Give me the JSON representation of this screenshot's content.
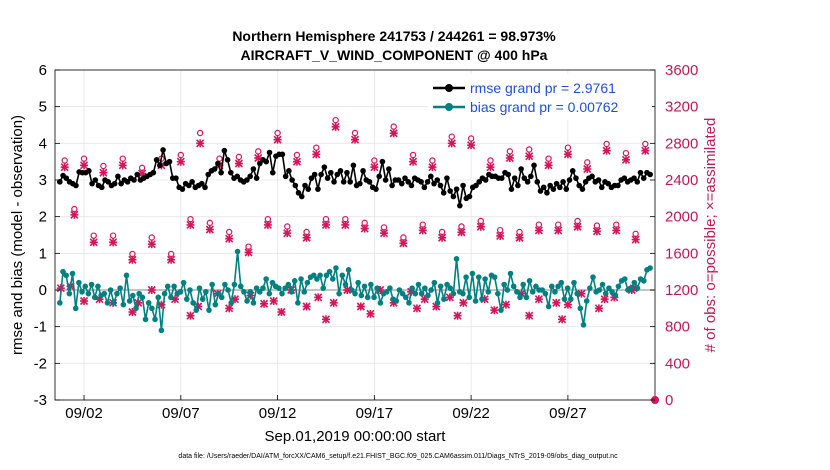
{
  "chart_data": {
    "type": "line",
    "title_line1": "Northern Hemisphere 241753 / 244261 = 98.973%",
    "title_line2": "AIRCRAFT_V_WIND_COMPONENT @ 400 hPa",
    "xlabel": "Sep.01,2019 00:00:00 start",
    "ylabel_left": "rmse and bias (model - observation)",
    "ylabel_right": "# of obs: o=possible; ×=assimilated",
    "xlim": [
      0,
      31
    ],
    "ylim_left": [
      -3,
      6
    ],
    "ylim_right": [
      0,
      3600
    ],
    "x_tick_values": [
      1.5,
      6.5,
      11.5,
      16.5,
      21.5,
      26.5
    ],
    "x_tick_labels": [
      "09/02",
      "09/07",
      "09/12",
      "09/17",
      "09/22",
      "09/27"
    ],
    "y_left_ticks": [
      "-3",
      "-2",
      "-1",
      "0",
      "1",
      "2",
      "3",
      "4",
      "5",
      "6"
    ],
    "y_right_ticks": [
      "0",
      "400",
      "800",
      "1200",
      "1600",
      "2000",
      "2400",
      "2800",
      "3200",
      "3600"
    ],
    "legend": [
      {
        "name": "rmse grand pr = 2.9761",
        "color": "#000000"
      },
      {
        "name": "bias grand pr = 0.00762",
        "color": "#008080"
      }
    ],
    "footnote": "data file: /Users/raeder/DAI/ATM_forcXX/CAM6_setup/f.e21.FHIST_BGC.f09_025.CAM6assim.011/Diags_NTrS_2019-09/obs_diag_output.nc",
    "series": [
      {
        "name": "rmse",
        "color": "#000000",
        "values": [
          2.95,
          3.12,
          3.05,
          2.95,
          2.9,
          2.85,
          3.22,
          3.2,
          3.2,
          3.25,
          2.9,
          3.0,
          2.85,
          2.8,
          3.0,
          2.95,
          2.85,
          2.9,
          3.1,
          2.9,
          3.0,
          2.95,
          3.05,
          3.0,
          3.15,
          3.0,
          3.05,
          3.1,
          3.15,
          3.2,
          3.55,
          3.4,
          3.82,
          3.45,
          3.5,
          3.05,
          3.05,
          2.8,
          2.75,
          2.9,
          2.85,
          2.95,
          2.8,
          2.85,
          2.9,
          2.8,
          3.15,
          3.25,
          3.3,
          3.45,
          3.2,
          3.8,
          3.55,
          3.2,
          3.05,
          3.1,
          3.0,
          2.95,
          3.0,
          3.1,
          3.3,
          3.05,
          3.45,
          3.55,
          3.5,
          3.75,
          3.2,
          3.65,
          3.7,
          3.7,
          3.1,
          3.25,
          3.0,
          2.85,
          2.65,
          2.55,
          2.85,
          2.75,
          3.05,
          3.15,
          2.75,
          3.15,
          3.35,
          3.05,
          3.2,
          2.95,
          3.15,
          3.25,
          2.95,
          3.2,
          2.95,
          3.4,
          2.85,
          2.9,
          3.25,
          3.0,
          2.95,
          2.8,
          2.75,
          3.1,
          3.5,
          3.0,
          3.3,
          2.85,
          3.0,
          3.0,
          2.9,
          3.05,
          2.95,
          2.85,
          3.05,
          3.0,
          2.95,
          2.8,
          2.95,
          3.1,
          2.9,
          3.0,
          2.85,
          2.65,
          3.05,
          2.7,
          2.55,
          2.75,
          2.3,
          2.85,
          2.5,
          2.55,
          2.8,
          2.85,
          2.95,
          3.05,
          3.0,
          3.15,
          3.1,
          3.1,
          3.05,
          3.05,
          3.2,
          3.15,
          2.75,
          3.05,
          2.85,
          3.3,
          3.05,
          2.95,
          3.1,
          3.4,
          2.95,
          2.7,
          2.8,
          2.65,
          2.85,
          2.75,
          2.9,
          2.8,
          2.95,
          2.75,
          3.0,
          3.25,
          3.05,
          2.85,
          2.75,
          2.95,
          3.05,
          3.1,
          2.95,
          3.0,
          2.8,
          2.95,
          2.9,
          2.8,
          2.85,
          2.85,
          3.0,
          3.05,
          2.95,
          3.0,
          3.05,
          2.95,
          3.2,
          3.05,
          3.2,
          3.15
        ]
      },
      {
        "name": "bias",
        "color": "#008080",
        "values": [
          -0.35,
          0.5,
          0.4,
          -0.1,
          0.45,
          -0.5,
          0.2,
          -0.05,
          0.1,
          -0.1,
          0.15,
          -0.2,
          0.1,
          -0.15,
          -0.1,
          -0.35,
          0.0,
          -0.35,
          -0.1,
          0.05,
          -0.4,
          0.4,
          -0.3,
          -0.15,
          -0.5,
          -0.1,
          -0.2,
          -0.8,
          -0.35,
          -0.5,
          -0.8,
          -0.2,
          -1.1,
          -0.1,
          0.1,
          -0.2,
          0.1,
          -0.1,
          -0.05,
          0.2,
          -0.25,
          0.0,
          -0.35,
          -0.55,
          0.05,
          -0.25,
          -0.05,
          -0.55,
          0.15,
          -0.4,
          -0.1,
          -0.2,
          0.15,
          0.0,
          -0.35,
          0.15,
          1.05,
          0.1,
          -0.05,
          -0.3,
          -0.05,
          -0.35,
          0.05,
          -0.05,
          0.05,
          0.3,
          -0.1,
          0.2,
          0.1,
          0.05,
          -0.1,
          0.05,
          0.15,
          -0.05,
          0.25,
          -0.35,
          0.3,
          -0.05,
          0.2,
          0.35,
          0.4,
          0.3,
          0.4,
          0.05,
          0.4,
          0.5,
          0.3,
          0.6,
          -0.1,
          0.4,
          0.15,
          0.55,
          0.0,
          -0.1,
          0.2,
          -0.15,
          0.1,
          -0.2,
          0.15,
          -0.2,
          0.05,
          -0.35,
          -0.1,
          -0.05,
          0.05,
          -0.25,
          -0.3,
          0.0,
          -0.1,
          -0.2,
          -0.35,
          0.05,
          -0.1,
          0.15,
          -0.1,
          0.05,
          -0.15,
          0.0,
          0.2,
          -0.35,
          0.1,
          -0.25,
          0.15,
          0.05,
          -0.1,
          0.85,
          -0.05,
          -0.1,
          0.35,
          -0.2,
          0.45,
          -0.3,
          0.35,
          -0.25,
          0.3,
          -0.05,
          0.4,
          0.35,
          -0.1,
          -0.55,
          0.15,
          0.0,
          0.45,
          0.1,
          -0.05,
          -0.2,
          0.15,
          -0.2,
          0.25,
          -0.05,
          0.1,
          0.0,
          0.0,
          -0.1,
          -0.45,
          0.1,
          -0.05,
          0.1,
          0.2,
          -0.25,
          0.05,
          -0.25,
          0.2,
          -0.1,
          -0.5,
          -0.95,
          -0.3,
          0.05,
          0.35,
          -0.05,
          0.0,
          0.15,
          -0.1,
          0.05,
          -0.05,
          -0.15,
          0.1,
          0.25,
          0.3,
          0.0,
          0.05,
          0.2,
          0.05,
          0.3,
          0.25,
          0.55,
          0.6
        ]
      },
      {
        "name": "obs_possible",
        "color": "#d6145a",
        "axis": "right",
        "x": [
          0.5,
          1.0,
          1.5,
          2.0,
          2.5,
          3.0,
          3.5,
          4.0,
          4.5,
          5.0,
          5.5,
          6.0,
          6.5,
          7.0,
          7.5,
          8.0,
          8.5,
          9.0,
          9.5,
          10.0,
          10.5,
          11.0,
          11.5,
          12.0,
          12.5,
          13.0,
          13.5,
          14.0,
          14.5,
          15.0,
          15.5,
          16.0,
          16.5,
          17.0,
          17.5,
          18.0,
          18.5,
          19.0,
          19.5,
          20.0,
          20.5,
          21.0,
          21.5,
          22.0,
          22.5,
          23.0,
          23.5,
          24.0,
          24.5,
          25.0,
          25.5,
          26.0,
          26.5,
          27.0,
          27.5,
          28.0,
          28.5,
          29.0,
          29.5,
          30.0,
          30.5
        ],
        "values": [
          2580,
          2050,
          2600,
          1760,
          2520,
          1760,
          2600,
          1560,
          2500,
          1740,
          2600,
          1560,
          2640,
          1940,
          2880,
          1900,
          2600,
          1800,
          2620,
          1640,
          2680,
          1940,
          2880,
          1860,
          2640,
          1800,
          2720,
          1940,
          3020,
          1940,
          2880,
          1900,
          2580,
          1850,
          2950,
          1740,
          2640,
          1880,
          2580,
          1800,
          2840,
          1860,
          2820,
          1920,
          2580,
          1820,
          2680,
          1800,
          2700,
          1880,
          2600,
          1880,
          2720,
          1920,
          2560,
          1870,
          2760,
          1880,
          2660,
          1780,
          2760
        ]
      },
      {
        "name": "obs_assimilated",
        "color": "#d6145a",
        "axis": "right",
        "x": [
          0.5,
          1.0,
          1.5,
          2.0,
          2.5,
          3.0,
          3.5,
          4.0,
          4.5,
          5.0,
          5.5,
          6.0,
          6.5,
          7.0,
          7.5,
          8.0,
          8.5,
          9.0,
          9.5,
          10.0,
          10.5,
          11.0,
          11.5,
          12.0,
          12.5,
          13.0,
          13.5,
          14.0,
          14.5,
          15.0,
          15.5,
          16.0,
          16.5,
          17.0,
          17.5,
          18.0,
          18.5,
          19.0,
          19.5,
          20.0,
          20.5,
          21.0,
          21.5,
          22.0,
          22.5,
          23.0,
          23.5,
          24.0,
          24.5,
          25.0,
          25.5,
          26.0,
          26.5,
          27.0,
          27.5,
          28.0,
          28.5,
          29.0,
          29.5,
          30.0,
          30.5
        ],
        "values": [
          2540,
          2020,
          2560,
          1720,
          2480,
          1720,
          2560,
          1530,
          2470,
          1700,
          2560,
          1530,
          2600,
          1910,
          2800,
          1860,
          2560,
          1760,
          2580,
          1610,
          2640,
          1910,
          2840,
          1820,
          2600,
          1770,
          2680,
          1910,
          2980,
          1910,
          2840,
          1870,
          2540,
          1820,
          2910,
          1710,
          2600,
          1850,
          2540,
          1770,
          2800,
          1830,
          2780,
          1890,
          2540,
          1790,
          2640,
          1770,
          2660,
          1850,
          2560,
          1850,
          2680,
          1890,
          2520,
          1840,
          2720,
          1850,
          2620,
          1750,
          2720
        ]
      },
      {
        "name": "obs_low",
        "color": "#d6145a",
        "axis": "right",
        "x": [
          0.3,
          1.5,
          2.3,
          3.0,
          4.3,
          5.0,
          5.5,
          6.2,
          7.4,
          8.4,
          9.3,
          10.1,
          10.8,
          11.3,
          12.2,
          13.0,
          13.6,
          14.4,
          15.1,
          15.8,
          16.8,
          17.5,
          18.4,
          19.1,
          19.7,
          20.4,
          21.1,
          22.2,
          23.3,
          24.1,
          25.0,
          25.9,
          26.5,
          27.2,
          28.1,
          28.9,
          29.8
        ],
        "values": [
          1220,
          1080,
          1100,
          1060,
          1060,
          1200,
          1040,
          1100,
          1020,
          1160,
          1100,
          1140,
          1050,
          1080,
          1200,
          1020,
          1120,
          1060,
          1200,
          1020,
          1200,
          1060,
          1180,
          1100,
          1020,
          1120,
          1060,
          1100,
          1040,
          1160,
          1100,
          1060,
          1040,
          1160,
          1000,
          1120,
          1200
        ]
      },
      {
        "name": "obs_low2",
        "color": "#d6145a",
        "axis": "right",
        "x": [
          0.8,
          4.0,
          7.0,
          9.0,
          11.7,
          14.0,
          16.3,
          18.7,
          20.8,
          22.7,
          24.5,
          26.2,
          28.4,
          29.9
        ],
        "values": [
          1240,
          960,
          920,
          1000,
          960,
          880,
          940,
          1000,
          920,
          980,
          920,
          880,
          1100,
          1220
        ]
      }
    ]
  }
}
